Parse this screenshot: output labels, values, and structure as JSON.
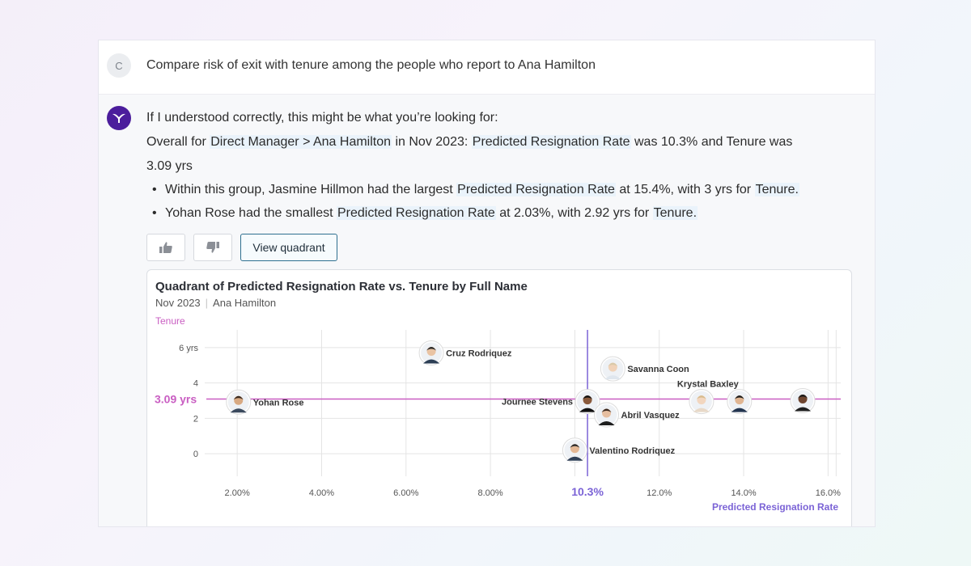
{
  "user_message": {
    "avatar_letter": "C",
    "text": "Compare risk of exit with tenure among the people who report to Ana Hamilton"
  },
  "response": {
    "intro": "If I understood correctly, this might be what you’re looking for:",
    "summary_prefix": "Overall for ",
    "summary_filter": "Direct Manager > Ana Hamilton",
    "summary_mid1": " in Nov 2023: ",
    "summary_metric": "Predicted Resignation Rate",
    "summary_mid2": " was 10.3% and Tenure was",
    "summary_line2": "3.09 yrs",
    "bullets": [
      {
        "pre": "Within this group, Jasmine Hillmon had the largest ",
        "metric": "Predicted Resignation Rate",
        "mid": " at 15.4%, with 3 yrs for ",
        "dim": "Tenure."
      },
      {
        "pre": "Yohan Rose had the smallest ",
        "metric": "Predicted Resignation Rate",
        "mid": " at 2.03%, with 2.92 yrs for ",
        "dim": "Tenure."
      }
    ],
    "actions": {
      "thumbs_up": "thumbs-up-icon",
      "thumbs_down": "thumbs-down-icon",
      "view_label": "View quadrant"
    }
  },
  "chart": {
    "title": "Quadrant of Predicted Resignation Rate vs. Tenure by Full Name",
    "subtitle_period": "Nov 2023",
    "subtitle_manager": "Ana Hamilton"
  },
  "chart_data": {
    "type": "scatter",
    "title": "Quadrant of Predicted Resignation Rate vs. Tenure by Full Name",
    "xlabel": "Predicted Resignation Rate",
    "ylabel": "Tenure",
    "xlim": [
      1.0,
      16.3
    ],
    "ylim": [
      -1.0,
      7.0
    ],
    "x_ticks": [
      2,
      4,
      6,
      8,
      12,
      14,
      16
    ],
    "x_tick_labels": [
      "2.00%",
      "4.00%",
      "6.00%",
      "8.00%",
      "12.0%",
      "14.0%",
      "16.0%"
    ],
    "y_ticks": [
      0,
      2,
      4,
      6
    ],
    "y_tick_labels": [
      "0",
      "2",
      "4",
      "6 yrs"
    ],
    "reference_lines": {
      "x": 10.3,
      "x_label": "10.3%",
      "y": 3.09,
      "y_label": "3.09 yrs"
    },
    "colors": {
      "x_ref": "#7b63d6",
      "y_ref": "#c95ec2",
      "grid": "#e4e4e4"
    },
    "points": [
      {
        "name": "Cruz Rodriquez",
        "x": 6.6,
        "y": 5.7,
        "label_pos": "right"
      },
      {
        "name": "Savanna Coon",
        "x": 10.9,
        "y": 4.8,
        "label_pos": "right"
      },
      {
        "name": "Yohan Rose",
        "x": 2.03,
        "y": 2.92,
        "label_pos": "right"
      },
      {
        "name": "Journee Stevens",
        "x": 10.3,
        "y": 2.95,
        "label_pos": "left"
      },
      {
        "name": "Abril Vasquez",
        "x": 10.75,
        "y": 2.2,
        "label_pos": "right"
      },
      {
        "name": "Krystal Baxley",
        "x": 13.0,
        "y": 2.95,
        "label_pos": "above"
      },
      {
        "name": "",
        "x": 13.9,
        "y": 2.95,
        "label_pos": "none"
      },
      {
        "name": "",
        "x": 15.4,
        "y": 3.0,
        "label_pos": "none"
      },
      {
        "name": "Valentino Rodriquez",
        "x": 10.0,
        "y": 0.2,
        "label_pos": "right"
      }
    ]
  }
}
